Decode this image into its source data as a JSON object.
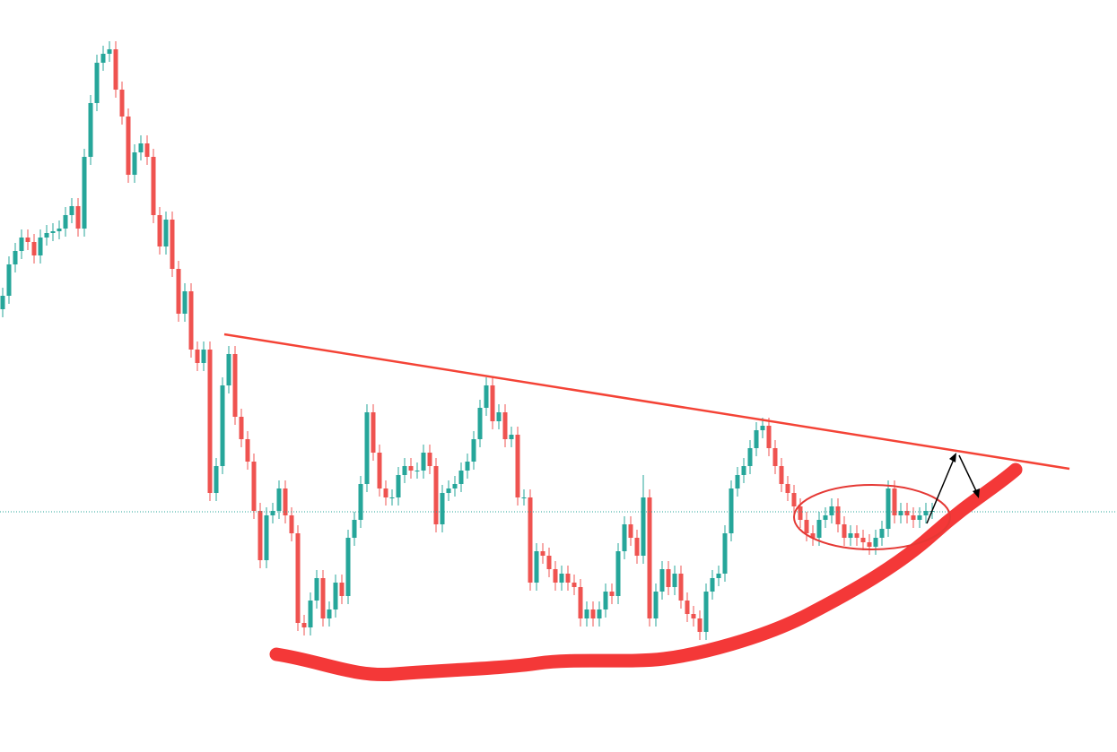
{
  "chart_data": {
    "type": "candlestick",
    "open": [
      494,
      509,
      544,
      559,
      574,
      569,
      554,
      574,
      579,
      581,
      584,
      599,
      609,
      584,
      664,
      724,
      769,
      779,
      784,
      739,
      709,
      644,
      669,
      679,
      664,
      599,
      564,
      594,
      539,
      489,
      514,
      449,
      434,
      449,
      289,
      319,
      409,
      444,
      374,
      349,
      324,
      269,
      214,
      264,
      269,
      294,
      264,
      244,
      144,
      139,
      169,
      194,
      149,
      159,
      189,
      174,
      239,
      259,
      299,
      379,
      334,
      294,
      284,
      284,
      309,
      319,
      314,
      314,
      334,
      319,
      254,
      289,
      294,
      299,
      314,
      324,
      349,
      384,
      409,
      369,
      379,
      349,
      354,
      284,
      284,
      189,
      224,
      219,
      204,
      189,
      199,
      189,
      184,
      149,
      159,
      149,
      159,
      179,
      174,
      224,
      254,
      239,
      219,
      284,
      149,
      179,
      204,
      184,
      199,
      169,
      154,
      149,
      134,
      179,
      194,
      199,
      244,
      294,
      309,
      319,
      339,
      359,
      364,
      339,
      319,
      299,
      289,
      274,
      259,
      244,
      239,
      259,
      264,
      274,
      254,
      239,
      244,
      239,
      234,
      229,
      239,
      249,
      294,
      264,
      269,
      264,
      259,
      264,
      269
    ],
    "high": [
      518,
      553,
      568,
      583,
      583,
      578,
      583,
      588,
      590,
      593,
      608,
      618,
      618,
      673,
      733,
      778,
      788,
      793,
      793,
      748,
      718,
      678,
      688,
      688,
      673,
      608,
      603,
      603,
      548,
      523,
      523,
      458,
      458,
      458,
      328,
      418,
      453,
      453,
      383,
      358,
      333,
      278,
      273,
      278,
      303,
      303,
      273,
      253,
      153,
      178,
      203,
      203,
      168,
      198,
      198,
      248,
      268,
      308,
      388,
      388,
      343,
      303,
      293,
      318,
      328,
      328,
      323,
      343,
      343,
      328,
      298,
      303,
      308,
      323,
      333,
      358,
      393,
      418,
      418,
      388,
      388,
      363,
      363,
      293,
      293,
      233,
      233,
      228,
      213,
      208,
      208,
      198,
      193,
      168,
      168,
      168,
      188,
      188,
      233,
      263,
      263,
      248,
      309,
      293,
      188,
      213,
      213,
      208,
      208,
      178,
      163,
      158,
      188,
      203,
      208,
      253,
      303,
      318,
      328,
      348,
      368,
      373,
      373,
      348,
      328,
      308,
      298,
      283,
      268,
      253,
      268,
      273,
      283,
      283,
      263,
      253,
      253,
      248,
      243,
      248,
      258,
      303,
      303,
      278,
      278,
      273,
      273,
      278,
      278
    ],
    "low": [
      485,
      500,
      535,
      550,
      560,
      545,
      545,
      565,
      570,
      572,
      575,
      590,
      575,
      575,
      655,
      715,
      760,
      770,
      730,
      700,
      635,
      635,
      660,
      655,
      590,
      555,
      555,
      530,
      480,
      480,
      440,
      425,
      425,
      280,
      280,
      310,
      400,
      365,
      340,
      315,
      260,
      205,
      205,
      255,
      260,
      255,
      235,
      135,
      130,
      130,
      160,
      140,
      140,
      150,
      165,
      165,
      230,
      250,
      290,
      325,
      285,
      275,
      275,
      275,
      300,
      305,
      305,
      305,
      310,
      245,
      245,
      280,
      285,
      290,
      305,
      315,
      340,
      375,
      360,
      360,
      340,
      340,
      275,
      275,
      180,
      180,
      210,
      195,
      180,
      180,
      180,
      175,
      140,
      140,
      140,
      140,
      150,
      165,
      165,
      215,
      230,
      210,
      210,
      140,
      140,
      170,
      175,
      175,
      160,
      145,
      140,
      125,
      125,
      170,
      185,
      190,
      235,
      285,
      300,
      310,
      330,
      350,
      330,
      310,
      290,
      280,
      265,
      250,
      235,
      230,
      230,
      250,
      255,
      245,
      230,
      230,
      230,
      225,
      220,
      220,
      230,
      240,
      255,
      255,
      255,
      250,
      250,
      255,
      260
    ],
    "close": [
      509,
      544,
      559,
      574,
      569,
      554,
      574,
      579,
      581,
      584,
      599,
      609,
      584,
      664,
      724,
      769,
      779,
      784,
      739,
      709,
      644,
      669,
      679,
      664,
      599,
      564,
      594,
      539,
      489,
      514,
      449,
      434,
      449,
      289,
      319,
      409,
      444,
      374,
      349,
      324,
      269,
      214,
      264,
      269,
      294,
      264,
      244,
      144,
      139,
      169,
      194,
      149,
      159,
      189,
      174,
      239,
      259,
      299,
      379,
      334,
      294,
      284,
      284,
      309,
      319,
      314,
      314,
      334,
      319,
      254,
      289,
      294,
      299,
      314,
      324,
      349,
      384,
      409,
      369,
      379,
      349,
      354,
      284,
      284,
      189,
      224,
      219,
      204,
      189,
      199,
      189,
      184,
      149,
      159,
      149,
      159,
      179,
      174,
      224,
      254,
      239,
      219,
      284,
      149,
      179,
      204,
      184,
      199,
      169,
      154,
      149,
      134,
      179,
      194,
      199,
      244,
      294,
      309,
      319,
      339,
      359,
      364,
      339,
      319,
      299,
      289,
      274,
      259,
      244,
      239,
      259,
      264,
      274,
      254,
      239,
      244,
      239,
      234,
      229,
      239,
      249,
      294,
      264,
      269,
      264,
      259,
      264,
      269,
      269
    ],
    "ylim": [
      0,
      839
    ],
    "up_color": "#26a69a",
    "down_color": "#ef5350"
  }
}
